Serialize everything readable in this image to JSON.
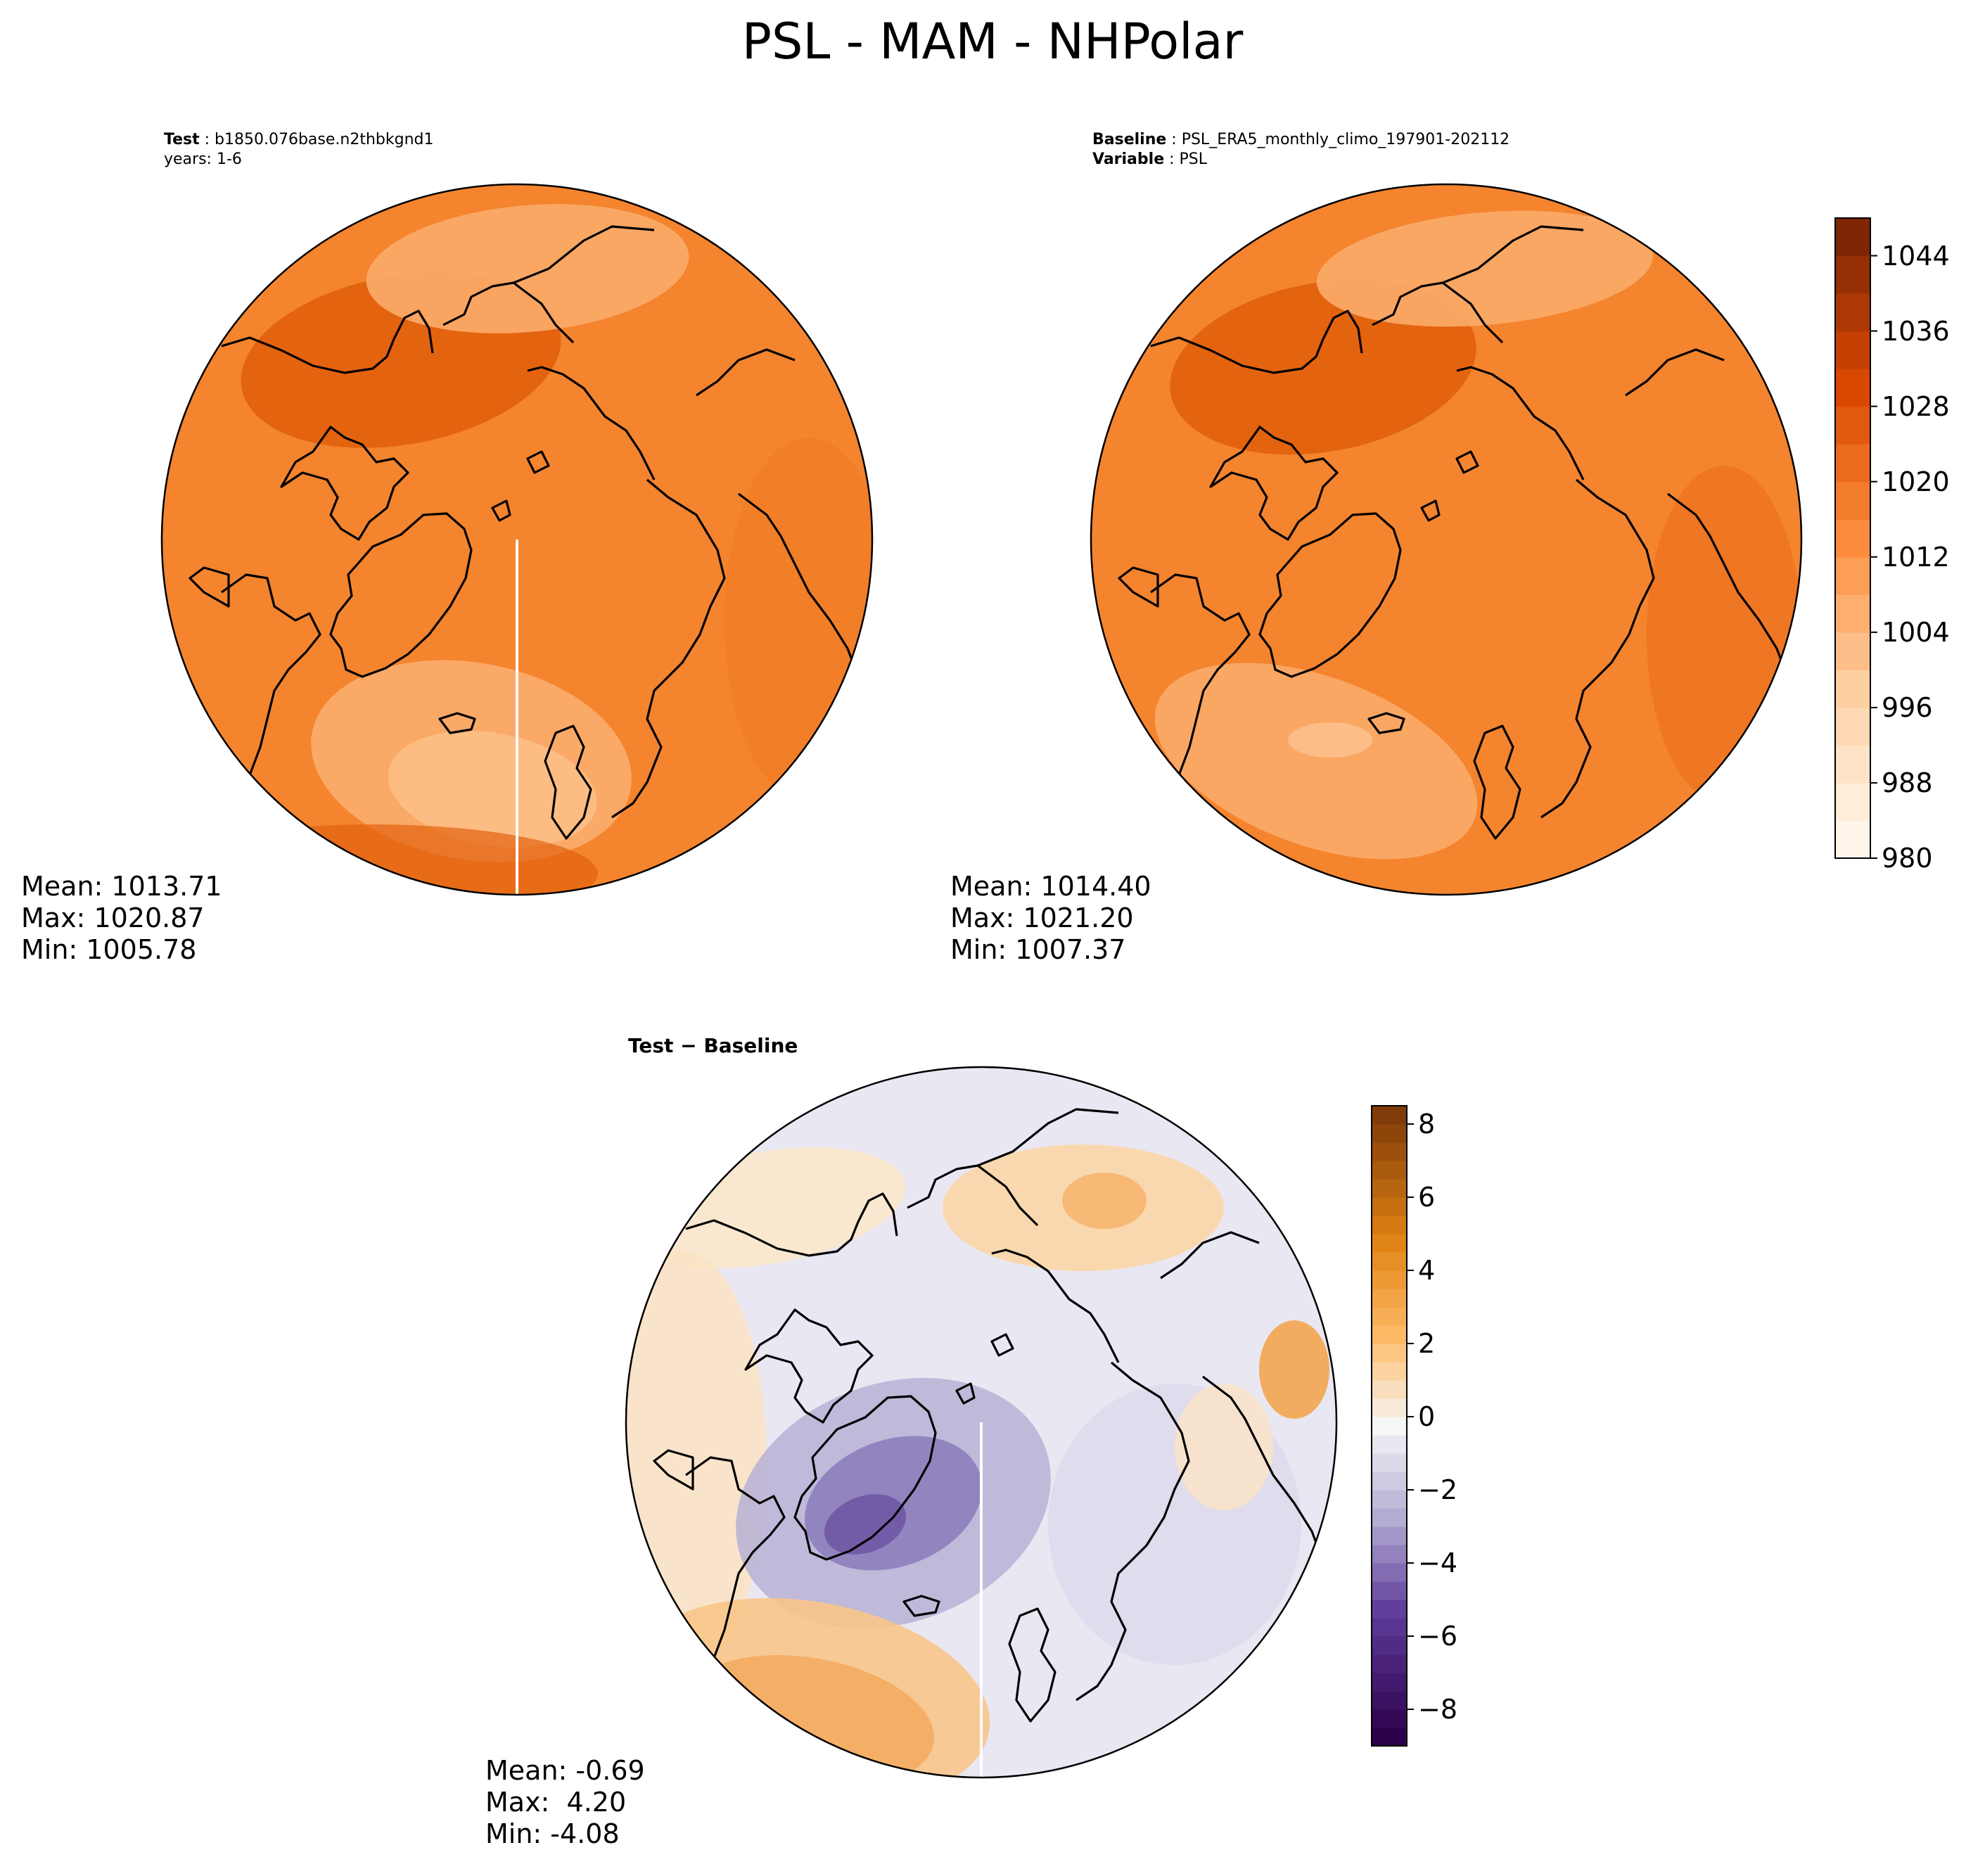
{
  "title": "PSL - MAM - NHPolar",
  "panels": {
    "test": {
      "label_key": "Test",
      "label_value": "b1850.076base.n2thbkgnd1",
      "years": "years: 1-6",
      "stats": {
        "mean": "Mean: 1013.71",
        "max": "Max: 1020.87",
        "min": "Min: 1005.78"
      }
    },
    "baseline": {
      "label_key": "Baseline",
      "label_value": "PSL_ERA5_monthly_climo_197901-202112",
      "variable_key": "Variable",
      "variable_value": "PSL",
      "stats": {
        "mean": "Mean: 1014.40",
        "max": "Max: 1021.20",
        "min": "Min: 1007.37"
      }
    },
    "diff": {
      "title": "Test − Baseline",
      "stats": {
        "mean": "Mean: -0.69",
        "max": "Max:  4.20",
        "min": "Min: -4.08"
      }
    }
  },
  "colors": {
    "orange_base": "#f4842e",
    "orange_dark": "#e3630f",
    "orange_light": "#fbab6a",
    "diff_neutral": "#e9e7f2",
    "diff_purple": "#6a51a3",
    "diff_orange": "#f6b266",
    "coast": "#000000"
  },
  "chart_data": [
    {
      "type": "heatmap",
      "name": "test",
      "projection": "north-polar-stereographic",
      "statistics": {
        "mean": 1013.71,
        "max": 1020.87,
        "min": 1005.78
      }
    },
    {
      "type": "heatmap",
      "name": "baseline",
      "projection": "north-polar-stereographic",
      "statistics": {
        "mean": 1014.4,
        "max": 1021.2,
        "min": 1007.37
      },
      "colorbar": {
        "colormap": "Oranges",
        "range": [
          980,
          1048
        ],
        "ticks": [
          "980",
          "988",
          "996",
          "1004",
          "1012",
          "1020",
          "1028",
          "1036",
          "1044"
        ],
        "levels": 17
      }
    },
    {
      "type": "heatmap",
      "name": "test_minus_baseline",
      "projection": "north-polar-stereographic",
      "statistics": {
        "mean": -0.69,
        "max": 4.2,
        "min": -4.08
      },
      "colorbar": {
        "colormap": "PuOr_r",
        "range": [
          -9,
          8.5
        ],
        "ticks": [
          "−8",
          "−6",
          "−4",
          "−2",
          "0",
          "2",
          "4",
          "6",
          "8"
        ],
        "levels": 35
      }
    }
  ]
}
